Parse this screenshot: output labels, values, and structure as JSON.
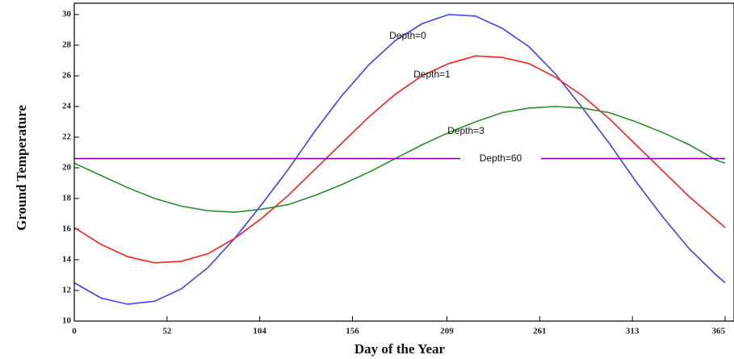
{
  "chart_data": {
    "type": "line",
    "xlabel": "Day of the Year",
    "ylabel": "Ground Temperature",
    "x": [
      0,
      15,
      30,
      45,
      60,
      75,
      90,
      105,
      120,
      135,
      150,
      165,
      180,
      195,
      210,
      225,
      240,
      255,
      270,
      285,
      300,
      315,
      330,
      345,
      360,
      365
    ],
    "series": [
      {
        "name": "Depth=0",
        "color": "#4040ff",
        "values": [
          12.5,
          11.5,
          11.1,
          11.3,
          12.1,
          13.5,
          15.4,
          17.6,
          19.9,
          22.4,
          24.7,
          26.7,
          28.3,
          29.4,
          30.0,
          29.9,
          29.1,
          27.9,
          26.1,
          23.9,
          21.6,
          19.1,
          16.8,
          14.7,
          13.0,
          12.5
        ]
      },
      {
        "name": "Depth=1",
        "color": "#ff2020",
        "values": [
          16.1,
          15.0,
          14.2,
          13.8,
          13.9,
          14.4,
          15.4,
          16.7,
          18.2,
          19.9,
          21.6,
          23.3,
          24.8,
          26.0,
          26.8,
          27.3,
          27.2,
          26.8,
          25.9,
          24.7,
          23.2,
          21.5,
          19.8,
          18.1,
          16.6,
          16.1
        ]
      },
      {
        "name": "Depth=3",
        "color": "#2e8b2e",
        "values": [
          20.3,
          19.5,
          18.7,
          18.0,
          17.5,
          17.2,
          17.1,
          17.3,
          17.6,
          18.2,
          18.9,
          19.7,
          20.6,
          21.5,
          22.3,
          23.0,
          23.6,
          23.9,
          24.0,
          23.9,
          23.6,
          23.0,
          22.3,
          21.5,
          20.5,
          20.3
        ]
      },
      {
        "name": "Depth=60",
        "color": "#8000a0",
        "values": [
          20.6,
          20.6,
          20.6,
          20.6,
          20.6,
          20.6,
          20.6,
          20.6,
          20.6,
          20.6,
          20.6,
          20.6,
          20.6,
          20.6,
          20.6,
          20.6,
          20.6,
          20.6,
          20.6,
          20.6,
          20.6,
          20.6,
          20.6,
          20.6,
          20.6,
          20.6
        ]
      }
    ],
    "xlim": [
      0,
      365
    ],
    "xticks": [
      0,
      52,
      104,
      156,
      209,
      261,
      313,
      365
    ],
    "ylim": [
      10,
      30
    ],
    "yticks": [
      10,
      12,
      14,
      16,
      18,
      20,
      22,
      24,
      26,
      28,
      30
    ]
  }
}
